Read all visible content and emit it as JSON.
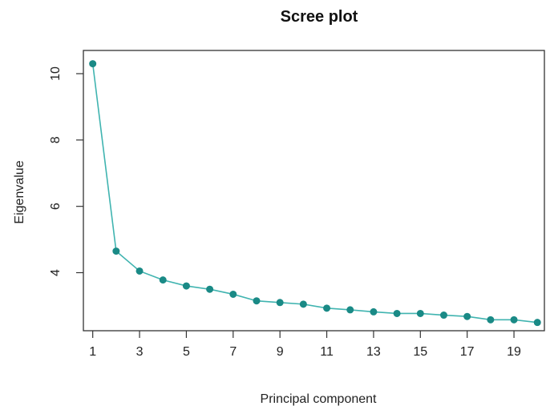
{
  "chart_data": {
    "type": "line",
    "title": "Scree plot",
    "xlabel": "Principal component",
    "ylabel": "Eigenvalue",
    "x": [
      1,
      2,
      3,
      4,
      5,
      6,
      7,
      8,
      9,
      10,
      11,
      12,
      13,
      14,
      15,
      16,
      17,
      18,
      19,
      20
    ],
    "series": [
      {
        "values": [
          10.3,
          4.65,
          4.05,
          3.78,
          3.6,
          3.5,
          3.35,
          3.15,
          3.1,
          3.05,
          2.93,
          2.88,
          2.82,
          2.77,
          2.77,
          2.72,
          2.68,
          2.58,
          2.58,
          2.5
        ],
        "color": "#40b4b0",
        "marker_color": "#1a8a86"
      }
    ],
    "xlim": [
      0.6,
      20.3
    ],
    "ylim": [
      2.25,
      10.7
    ],
    "x_ticks": [
      1,
      3,
      5,
      7,
      9,
      11,
      13,
      15,
      17,
      19
    ],
    "y_ticks": [
      4,
      6,
      8,
      10
    ],
    "grid": false
  }
}
